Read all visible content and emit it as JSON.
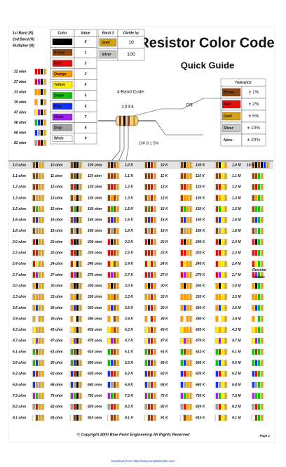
{
  "title": "Resistor Color Code",
  "subtitle": "Quick Guide",
  "band_labels": [
    "1st Band (R)",
    "2nd Band (R)",
    "Multiplier (M)"
  ],
  "palette": [
    "#000000",
    "#8b4513",
    "#e01010",
    "#ff9900",
    "#ffee00",
    "#10c010",
    "#1030ff",
    "#a020f0",
    "#a0a0a0",
    "#ffffff",
    "#d4a017",
    "#c8c8c8"
  ],
  "color_table": {
    "headers": [
      "Color",
      "Value"
    ],
    "rows": [
      {
        "name": "Black",
        "value": 0
      },
      {
        "name": "Brown",
        "value": 1
      },
      {
        "name": "Red",
        "value": 2
      },
      {
        "name": "Orange",
        "value": 3
      },
      {
        "name": "Yellow",
        "value": 4
      },
      {
        "name": "Green",
        "value": 5
      },
      {
        "name": "Blue",
        "value": 6
      },
      {
        "name": "Violet",
        "value": 7
      },
      {
        "name": "Gray",
        "value": 8
      },
      {
        "name": "White",
        "value": 9
      }
    ]
  },
  "divide_table": {
    "headers": [
      "Band 3",
      "Divide by"
    ],
    "rows": [
      {
        "name": "Gold",
        "value": 10,
        "color": 10
      },
      {
        "name": "Silver",
        "value": 100,
        "color": 11
      }
    ]
  },
  "tolerance_table": {
    "header": "Tolerance",
    "rows": [
      {
        "name": "Brown",
        "tol": "± 1%",
        "color": 1
      },
      {
        "name": "Red",
        "tol": "± 2%",
        "color": 2
      },
      {
        "name": "Gold",
        "tol": "± 5%",
        "color": 10
      },
      {
        "name": "Silver",
        "tol": "± 10%",
        "color": 11
      },
      {
        "name": "None",
        "tol": "± 20%",
        "color": null
      }
    ]
  },
  "diagram": {
    "caption": "4-Band Code",
    "numbers": "1 2 3 4",
    "or": "OR",
    "example": "100 Ω ± 5%"
  },
  "left_list": [
    {
      "label": "22 ohm",
      "digits": [
        2,
        2
      ]
    },
    {
      "label": "27 ohm",
      "digits": [
        2,
        7
      ]
    },
    {
      "label": "33 ohm",
      "digits": [
        3,
        3
      ]
    },
    {
      "label": "39 ohm",
      "digits": [
        3,
        9
      ]
    },
    {
      "label": "47 ohm",
      "digits": [
        4,
        7
      ]
    },
    {
      "label": "56 ohm",
      "digits": [
        5,
        6
      ]
    },
    {
      "label": "68 ohm",
      "digits": [
        6,
        8
      ]
    },
    {
      "label": "82 ohm",
      "digits": [
        8,
        2
      ]
    }
  ],
  "grid": {
    "multipliers": [
      10,
      0,
      1,
      2,
      3,
      4,
      5
    ],
    "extra": {
      "label": "10 M",
      "digits": [
        1,
        0
      ],
      "multiplier": 6
    },
    "side_label": "Resistor Values",
    "rows": [
      {
        "digits": [
          1,
          0
        ],
        "cells": [
          "1.0 ohm",
          "10 ohm",
          "100 ohm",
          "1.0 K",
          "10 K",
          "100 K",
          "1.0 M"
        ]
      },
      {
        "digits": [
          1,
          1
        ],
        "cells": [
          "1.1 ohm",
          "11 ohm",
          "110 ohm",
          "1.1 K",
          "11 K",
          "110 K",
          "1.1 M"
        ]
      },
      {
        "digits": [
          1,
          2
        ],
        "cells": [
          "1.2 ohm",
          "12 ohm",
          "120 ohm",
          "1.2 K",
          "12 K",
          "120 K",
          "1.2 M"
        ]
      },
      {
        "digits": [
          1,
          3
        ],
        "cells": [
          "1.3 ohm",
          "13 ohm",
          "130 ohm",
          "1.3 K",
          "13 K",
          "130 K",
          "1.3 M"
        ]
      },
      {
        "digits": [
          1,
          5
        ],
        "cells": [
          "1.5 ohm",
          "15 ohm",
          "150 ohm",
          "1.5 K",
          "15 K",
          "150 K",
          "1.5 M"
        ]
      },
      {
        "digits": [
          1,
          6
        ],
        "cells": [
          "1.6 ohm",
          "16 ohm",
          "160 ohm",
          "1.6 K",
          "16 K",
          "160 K",
          "1.6 M"
        ]
      },
      {
        "digits": [
          1,
          8
        ],
        "cells": [
          "1.8 ohm",
          "18 ohm",
          "180 ohm",
          "1.8 K",
          "18 K",
          "180 K",
          "1.8 M"
        ]
      },
      {
        "digits": [
          2,
          0
        ],
        "cells": [
          "2.0 ohm",
          "20 ohm",
          "200 ohm",
          "2.0 K",
          "20 K",
          "200 K",
          "2.0 M"
        ]
      },
      {
        "digits": [
          2,
          2
        ],
        "cells": [
          "2.2 ohm",
          "22 ohm",
          "220 ohm",
          "2.2 K",
          "22 K",
          "220 K",
          "2.2 M"
        ]
      },
      {
        "digits": [
          2,
          4
        ],
        "cells": [
          "2.4 ohm",
          "24 ohm",
          "240 ohm",
          "2.4 K",
          "24 K",
          "240 K",
          "2.4 M"
        ]
      },
      {
        "digits": [
          2,
          7
        ],
        "cells": [
          "2.7 ohm",
          "27 ohm",
          "270 ohm",
          "2.7 K",
          "27 K",
          "270 K",
          "2.7 M"
        ]
      },
      {
        "digits": [
          3,
          0
        ],
        "cells": [
          "3.0 ohm",
          "30 ohm",
          "300 ohm",
          "3.0 K",
          "30 K",
          "300 K",
          "3.0 M"
        ]
      },
      {
        "digits": [
          3,
          3
        ],
        "cells": [
          "3.3 ohm",
          "33 ohm",
          "330 ohm",
          "3.3 K",
          "33 K",
          "330 K",
          "3.3 M"
        ]
      },
      {
        "digits": [
          3,
          6
        ],
        "cells": [
          "3.6 ohm",
          "36 ohm",
          "360 ohm",
          "3.6 K",
          "36 K",
          "360 K",
          "3.6 M"
        ]
      },
      {
        "digits": [
          3,
          9
        ],
        "cells": [
          "3.9 ohm",
          "39 ohm",
          "390 ohm",
          "3.9 K",
          "39 K",
          "390 K",
          "3.9 M"
        ]
      },
      {
        "digits": [
          4,
          3
        ],
        "cells": [
          "4.3 ohm",
          "43 ohm",
          "430 ohm",
          "4.3 K",
          "43 K",
          "430 K",
          "4.3 M"
        ]
      },
      {
        "digits": [
          4,
          7
        ],
        "cells": [
          "4.7 ohm",
          "47 ohm",
          "470 ohm",
          "4.7 K",
          "47 K",
          "470 K",
          "4.7 M"
        ]
      },
      {
        "digits": [
          5,
          1
        ],
        "cells": [
          "5.1 ohm",
          "51 ohm",
          "510 ohm",
          "5.1 K",
          "51 K",
          "510 K",
          "5.1 M"
        ]
      },
      {
        "digits": [
          5,
          6
        ],
        "cells": [
          "5.6 ohm",
          "56 ohm",
          "560 ohm",
          "5.6 K",
          "56 K",
          "560 K",
          "5.6 M"
        ]
      },
      {
        "digits": [
          6,
          2
        ],
        "cells": [
          "6.2 ohm",
          "62 ohm",
          "620 ohm",
          "6.2 K",
          "62 K",
          "620 K",
          "6.2 M"
        ]
      },
      {
        "digits": [
          6,
          8
        ],
        "cells": [
          "6.8 ohm",
          "68 ohm",
          "680 ohm",
          "6.8 K",
          "68 K",
          "680 K",
          "6.8 M"
        ]
      },
      {
        "digits": [
          7,
          5
        ],
        "cells": [
          "7.5 ohm",
          "75 ohm",
          "750 ohm",
          "7.5 K",
          "75 K",
          "750 K",
          "7.5 M"
        ]
      },
      {
        "digits": [
          8,
          2
        ],
        "cells": [
          "8.2 ohm",
          "82 ohm",
          "820 ohm",
          "8.2 K",
          "82 K",
          "820 K",
          "8.2 M"
        ]
      },
      {
        "digits": [
          9,
          1
        ],
        "cells": [
          "9.1 ohm",
          "91 ohm",
          "910 ohm",
          "9.1 K",
          "91 K",
          "910 K",
          "9.1 M"
        ]
      }
    ]
  },
  "footer": {
    "copyright": "© Copyright 2000 Blue Point Engineering    All Rights Reserved",
    "page": "Page 1",
    "download": "Download from http://www.templateroller.com"
  }
}
